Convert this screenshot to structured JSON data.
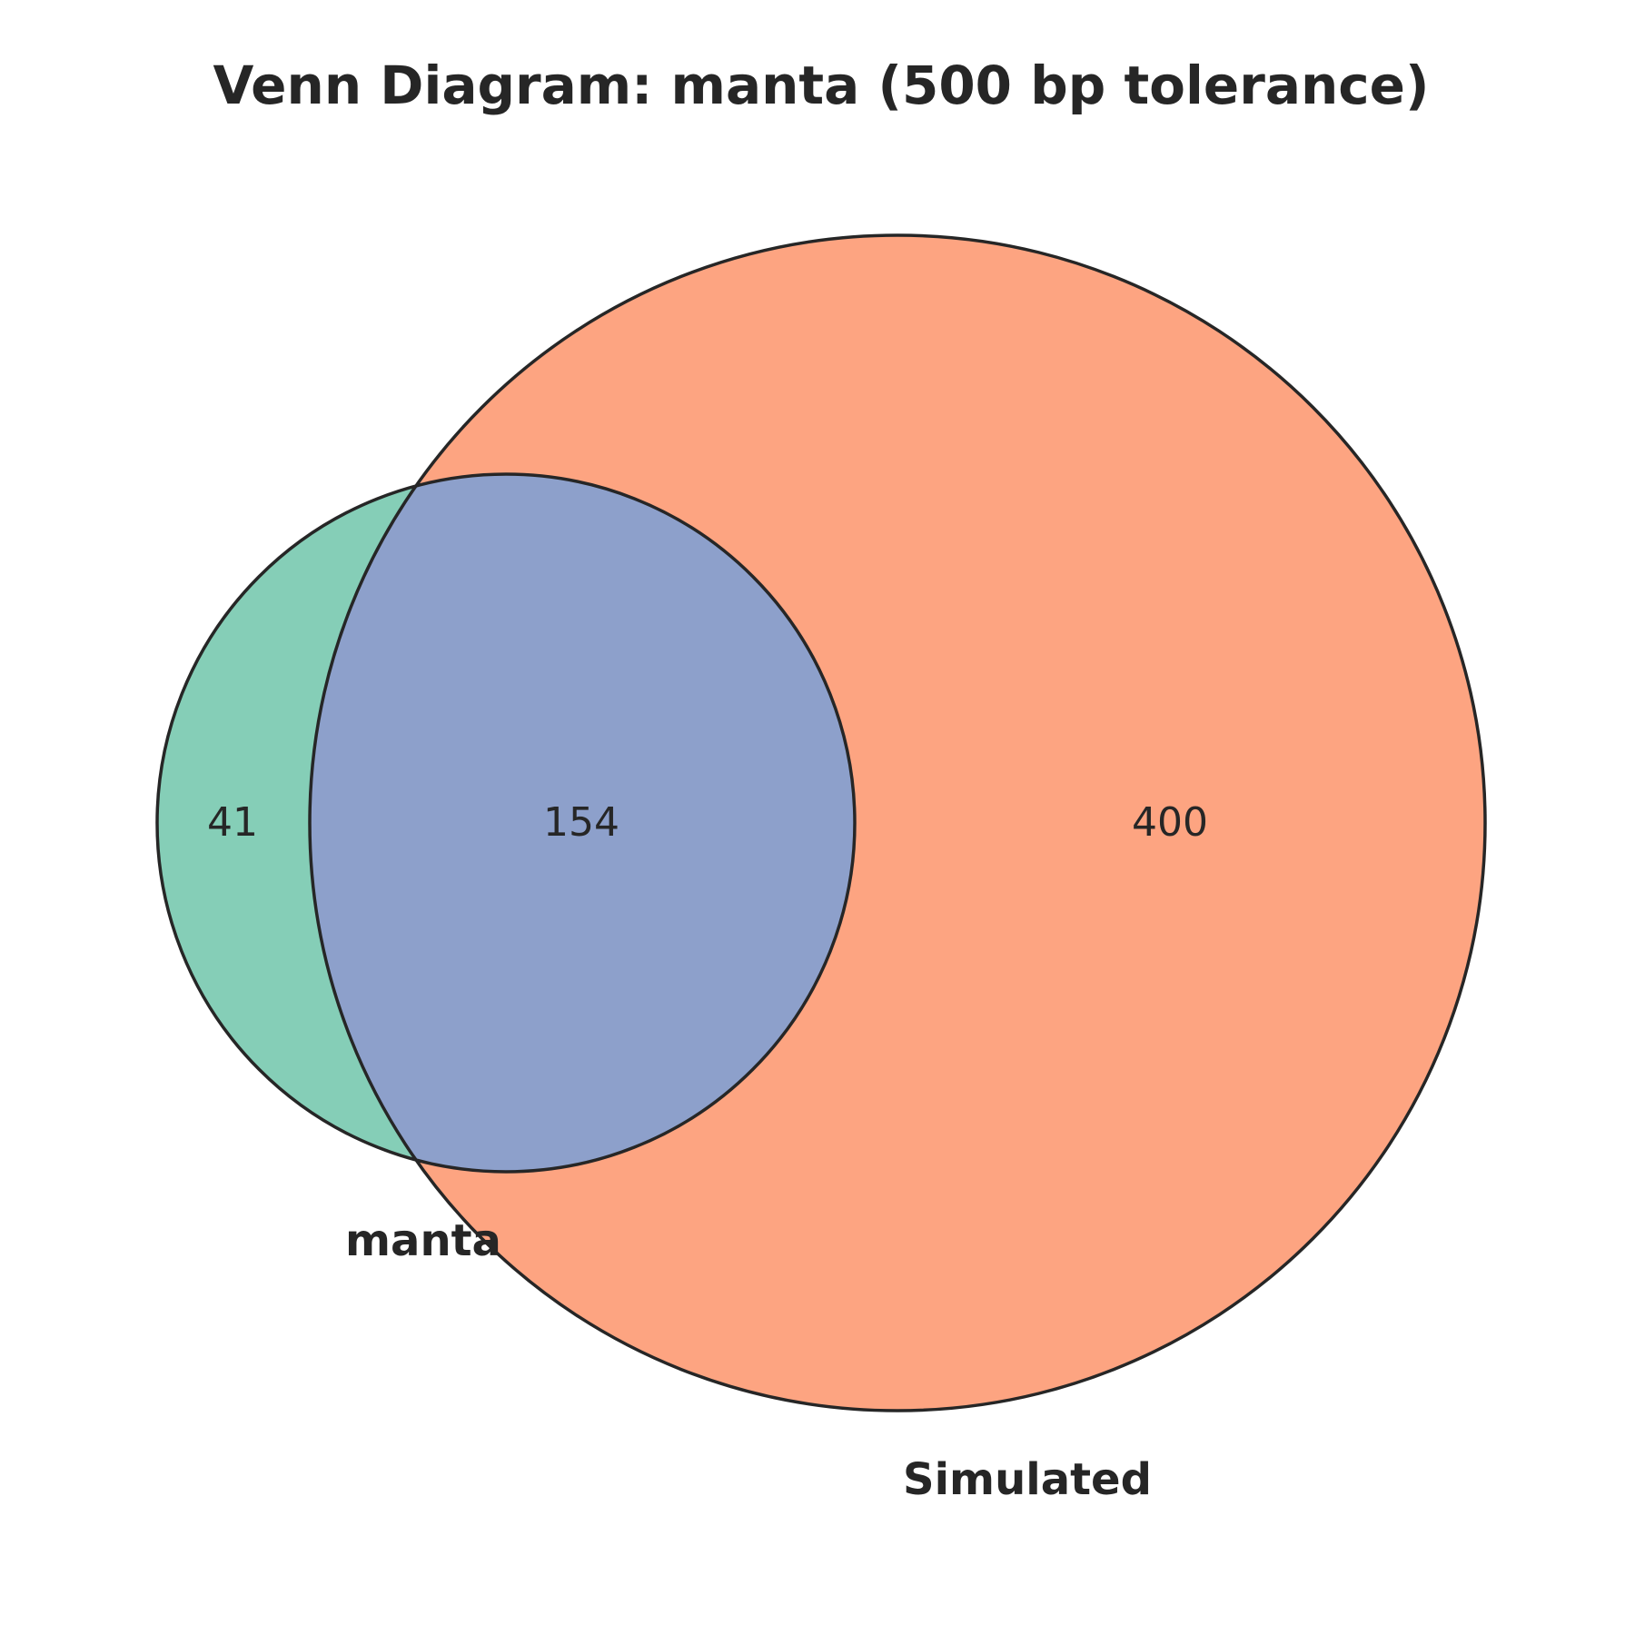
{
  "title": "Venn Diagram: manta (500 bp tolerance)",
  "sets": {
    "a": {
      "label": "manta",
      "color": "#66c2a5"
    },
    "b": {
      "label": "Simulated",
      "color": "#fc8d62"
    },
    "overlap_color": "#8da0cb"
  },
  "counts": {
    "a_only": "41",
    "both": "154",
    "b_only": "400"
  },
  "outline_color": "#262626"
}
